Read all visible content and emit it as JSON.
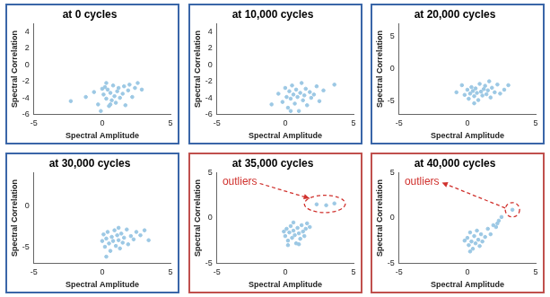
{
  "chart_data": [
    {
      "type": "scatter",
      "title": "at 0 cycles",
      "x_label": "Spectral Amplitude",
      "y_label": "Spectral Correlation",
      "color": "#9cc8e4",
      "xlim": [
        -5,
        5
      ],
      "xticks": [
        -5,
        0,
        5
      ],
      "ylim": [
        -6,
        5
      ],
      "yticks": [
        -6,
        -4,
        -2,
        0,
        2,
        4
      ],
      "grid": false,
      "x": [
        -2.3,
        -1.2,
        -0.6,
        -0.3,
        0,
        0.1,
        0.2,
        0.3,
        0.4,
        0.5,
        0.6,
        0.7,
        0.8,
        0.9,
        1.0,
        1.1,
        1.2,
        1.3,
        1.5,
        1.6,
        1.7,
        1.9,
        2.0,
        2.2,
        2.4,
        2.6,
        2.9,
        0.3,
        -0.1,
        0.6
      ],
      "values": [
        -4.4,
        -3.9,
        -3.3,
        -4.8,
        -2.9,
        -3.6,
        -2.7,
        -4.1,
        -3.0,
        -5.0,
        -3.4,
        -4.3,
        -2.5,
        -3.8,
        -4.6,
        -3.2,
        -2.8,
        -4.0,
        -3.5,
        -2.6,
        -4.9,
        -3.1,
        -2.4,
        -3.9,
        -2.8,
        -2.2,
        -3.0,
        -2.2,
        -5.6,
        -4.8
      ]
    },
    {
      "type": "scatter",
      "title": "at 10,000 cycles",
      "x_label": "Spectral Amplitude",
      "y_label": "Spectral Correlation",
      "color": "#9cc8e4",
      "xlim": [
        -5,
        5
      ],
      "xticks": [
        -5,
        0,
        5
      ],
      "ylim": [
        -6,
        5
      ],
      "yticks": [
        -6,
        -4,
        -2,
        0,
        2,
        4
      ],
      "grid": false,
      "x": [
        -1.0,
        -0.5,
        -0.2,
        0,
        0.1,
        0.2,
        0.3,
        0.4,
        0.5,
        0.6,
        0.7,
        0.8,
        0.9,
        1.0,
        1.1,
        1.2,
        1.3,
        1.4,
        1.5,
        1.6,
        1.8,
        1.9,
        2.1,
        2.3,
        2.5,
        2.8,
        3.6,
        0.4
      ],
      "values": [
        -4.8,
        -3.5,
        -4.5,
        -2.8,
        -3.9,
        -5.2,
        -3.2,
        -4.1,
        -2.5,
        -3.6,
        -4.7,
        -3.0,
        -3.9,
        -5.6,
        -3.4,
        -2.2,
        -4.3,
        -3.7,
        -2.9,
        -4.9,
        -3.3,
        -4.0,
        -3.6,
        -2.6,
        -4.4,
        -3.1,
        -2.4,
        -5.6
      ]
    },
    {
      "type": "scatter",
      "title": "at 20,000 cycles",
      "x_label": "Spectral Amplitude",
      "y_label": "Spectral Correlation",
      "color": "#9cc8e4",
      "xlim": [
        -5,
        5
      ],
      "xticks": [
        -5,
        0,
        5
      ],
      "ylim": [
        -7,
        7
      ],
      "yticks": [
        -5,
        0,
        5
      ],
      "grid": false,
      "x": [
        -0.8,
        -0.4,
        -0.2,
        0,
        0.1,
        0.2,
        0.3,
        0.4,
        0.5,
        0.6,
        0.7,
        0.8,
        0.9,
        1.0,
        1.1,
        1.2,
        1.3,
        1.4,
        1.5,
        1.7,
        1.8,
        2.0,
        2.2,
        2.4,
        2.7,
        3.0,
        0.5,
        1.6
      ],
      "values": [
        -3.6,
        -2.5,
        -4.0,
        -3.2,
        -4.6,
        -3.8,
        -2.8,
        -3.4,
        -4.2,
        -3.0,
        -3.7,
        -4.8,
        -2.3,
        -3.5,
        -4.1,
        -3.1,
        -2.6,
        -3.9,
        -3.3,
        -4.4,
        -2.9,
        -3.6,
        -2.4,
        -3.8,
        -3.2,
        -2.5,
        -5.3,
        -1.9
      ]
    },
    {
      "type": "scatter",
      "title": "at 30,000 cycles",
      "x_label": "Spectral Amplitude",
      "y_label": "Spectral Correlation",
      "color": "#9cc8e4",
      "xlim": [
        -5,
        5
      ],
      "xticks": [
        -5,
        0,
        5
      ],
      "ylim": [
        -7,
        4
      ],
      "yticks": [
        -5,
        0
      ],
      "grid": false,
      "x": [
        0,
        0.1,
        0.2,
        0.3,
        0.4,
        0.5,
        0.6,
        0.7,
        0.8,
        0.9,
        1.0,
        1.1,
        1.2,
        1.3,
        1.4,
        1.5,
        1.6,
        1.8,
        1.9,
        2.1,
        2.3,
        2.5,
        2.8,
        3.1,
        3.4,
        0.3,
        1.2
      ],
      "values": [
        -4.3,
        -3.5,
        -5.0,
        -4.0,
        -3.2,
        -4.6,
        -5.5,
        -3.8,
        -4.3,
        -3.0,
        -4.9,
        -3.6,
        -4.2,
        -5.2,
        -3.4,
        -4.5,
        -3.9,
        -2.9,
        -4.7,
        -3.7,
        -4.1,
        -3.2,
        -3.6,
        -3.0,
        -4.2,
        -6.2,
        -2.7
      ]
    },
    {
      "type": "scatter",
      "title": "at 35,000 cycles",
      "x_label": "Spectral Amplitude",
      "y_label": "Spectral Correlation",
      "color": "#9cc8e4",
      "xlim": [
        -5,
        5
      ],
      "xticks": [
        -5,
        0,
        5
      ],
      "ylim": [
        -5,
        5
      ],
      "yticks": [
        -5,
        0,
        5
      ],
      "grid": false,
      "annotation": "outliers",
      "x": [
        0,
        0.1,
        0.2,
        0.3,
        0.4,
        0.5,
        0.6,
        0.7,
        0.8,
        0.9,
        1.0,
        1.1,
        1.2,
        1.3,
        1.4,
        1.5,
        1.6,
        1.8,
        0.2,
        -0.1,
        0.6,
        1.0,
        2.3,
        3.0,
        3.6
      ],
      "values": [
        -2.0,
        -1.2,
        -2.5,
        -1.6,
        -0.9,
        -2.2,
        -1.4,
        -1.9,
        -2.8,
        -1.1,
        -1.7,
        -2.3,
        -0.8,
        -1.5,
        -2.0,
        -1.2,
        -0.6,
        -1.0,
        -3.0,
        -1.5,
        -0.5,
        -2.9,
        1.5,
        1.4,
        1.6
      ]
    },
    {
      "type": "scatter",
      "title": "at 40,000 cycles",
      "x_label": "Spectral Amplitude",
      "y_label": "Spectral Correlation",
      "color": "#9cc8e4",
      "xlim": [
        -5,
        5
      ],
      "xticks": [
        -5,
        0,
        5
      ],
      "ylim": [
        -5,
        5
      ],
      "yticks": [
        -5,
        0,
        5
      ],
      "grid": false,
      "annotation": "outliers",
      "x": [
        0,
        0.1,
        0.2,
        0.3,
        0.4,
        0.5,
        0.6,
        0.7,
        0.8,
        0.9,
        1.0,
        1.1,
        1.3,
        1.5,
        1.7,
        1.9,
        2.1,
        2.3,
        2.5,
        2.2,
        0.2,
        -0.2,
        3.3
      ],
      "values": [
        -2.2,
        -3.0,
        -1.6,
        -2.6,
        -3.4,
        -2.0,
        -2.8,
        -1.4,
        -2.4,
        -3.1,
        -1.8,
        -2.6,
        -2.1,
        -1.2,
        -1.8,
        -0.8,
        -1.0,
        -0.3,
        0.1,
        -0.6,
        -3.7,
        -2.5,
        0.9
      ]
    }
  ]
}
